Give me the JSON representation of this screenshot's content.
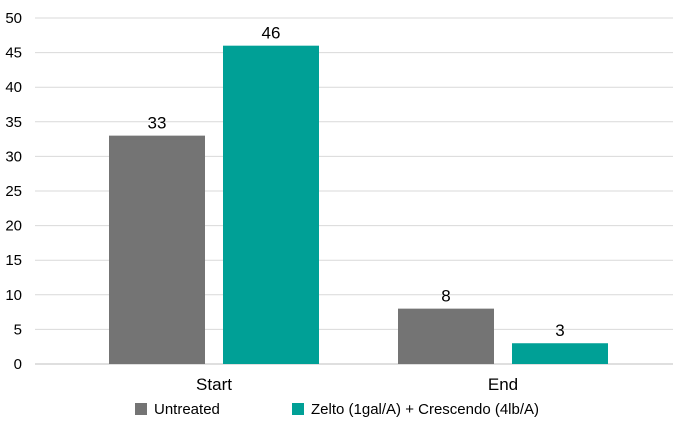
{
  "chart_data": {
    "type": "bar",
    "categories": [
      "Start",
      "End"
    ],
    "series": [
      {
        "name": "Untreated",
        "values": [
          33,
          8
        ],
        "color": "#747474"
      },
      {
        "name": "Zelto (1gal/A) + Crescendo (4lb/A)",
        "values": [
          46,
          3
        ],
        "color": "#00A096"
      }
    ],
    "data_labels": [
      [
        "33",
        "8"
      ],
      [
        "46",
        "3"
      ]
    ],
    "ylim": [
      0,
      50
    ],
    "yticks": [
      0,
      5,
      10,
      15,
      20,
      25,
      30,
      35,
      40,
      45,
      50
    ],
    "grid": true,
    "legend": "bottom",
    "title": "",
    "xlabel": "",
    "ylabel": ""
  }
}
